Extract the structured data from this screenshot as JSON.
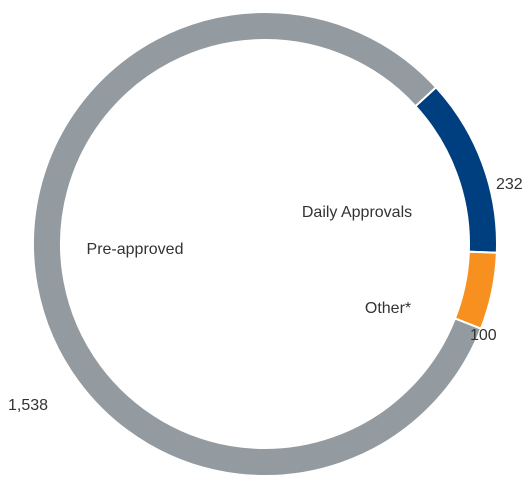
{
  "chart_data": {
    "type": "donut",
    "categories": [
      "Daily Approvals",
      "Other*",
      "Pre-approved"
    ],
    "values": [
      232,
      100,
      1538
    ],
    "value_labels": [
      "232",
      "100",
      "1,538"
    ],
    "colors": [
      "#003f7f",
      "#f7901e",
      "#939ba1"
    ]
  }
}
